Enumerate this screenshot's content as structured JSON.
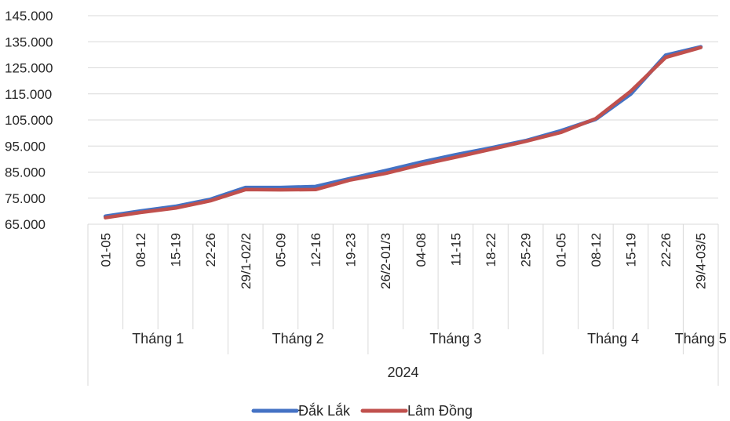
{
  "chart_data": {
    "type": "line",
    "categories": [
      "01-05",
      "08-12",
      "15-19",
      "22-26",
      "29/1-02/2",
      "05-09",
      "12-16",
      "19-23",
      "26/2-01/3",
      "04-08",
      "11-15",
      "18-22",
      "25-29",
      "01-05",
      "08-12",
      "15-19",
      "22-26",
      "29/4-03/5"
    ],
    "month_groups": [
      {
        "label": "Tháng 1",
        "count": 4
      },
      {
        "label": "Tháng 2",
        "count": 4
      },
      {
        "label": "Tháng 3",
        "count": 5
      },
      {
        "label": "Tháng 4",
        "count": 4
      },
      {
        "label": "Tháng 5",
        "count": 1
      }
    ],
    "year_label": "2024",
    "series": [
      {
        "name": "Đắk Lắk",
        "color": "#4472c4",
        "values": [
          68000,
          70000,
          71800,
          74500,
          79000,
          79000,
          79400,
          82500,
          85500,
          88700,
          91600,
          94200,
          97000,
          100800,
          105300,
          115000,
          129800,
          133000
        ]
      },
      {
        "name": "Lâm Đồng",
        "color": "#c0504d",
        "values": [
          67500,
          69500,
          71200,
          74000,
          78300,
          78200,
          78300,
          82000,
          84500,
          87800,
          90700,
          93700,
          96800,
          100200,
          105500,
          116000,
          129000,
          132800
        ]
      }
    ],
    "y_ticks": [
      "65.000",
      "75.000",
      "85.000",
      "95.000",
      "105.000",
      "115.000",
      "125.000",
      "135.000",
      "145.000"
    ],
    "ylim": [
      65000,
      145000
    ],
    "grid": true,
    "legend_position": "bottom"
  }
}
